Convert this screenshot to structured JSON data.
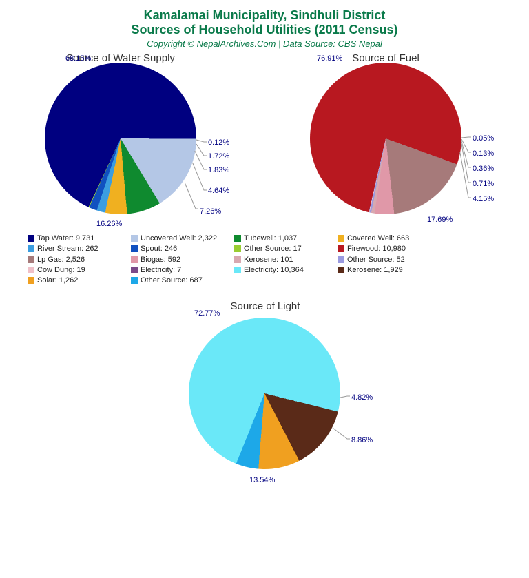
{
  "title_line1": "Kamalamai Municipality, Sindhuli District",
  "title_line2": "Sources of Household Utilities (2011 Census)",
  "subtitle": "Copyright © NepalArchives.Com | Data Source: CBS Nepal",
  "title_color": "#0a7a4a",
  "label_color": "#000080",
  "background_color": "#ffffff",
  "charts": {
    "water": {
      "title": "Source of Water Supply",
      "slices": [
        {
          "label": "Tap Water",
          "value": 9731,
          "pct": 68.15,
          "color": "#000080"
        },
        {
          "label": "Uncovered Well",
          "value": 2322,
          "pct": 16.26,
          "color": "#b4c7e6"
        },
        {
          "label": "Tubewell",
          "value": 1037,
          "pct": 7.26,
          "color": "#0f8a2f"
        },
        {
          "label": "Covered Well",
          "value": 663,
          "pct": 4.64,
          "color": "#f0b020"
        },
        {
          "label": "River Stream",
          "value": 262,
          "pct": 1.83,
          "color": "#3b9de0"
        },
        {
          "label": "Spout",
          "value": 246,
          "pct": 1.72,
          "color": "#1050c0"
        },
        {
          "label": "Other Source",
          "value": 17,
          "pct": 0.12,
          "color": "#9acd32"
        }
      ]
    },
    "fuel": {
      "title": "Source of Fuel",
      "slices": [
        {
          "label": "Firewood",
          "value": 10980,
          "pct": 76.91,
          "color": "#b81820"
        },
        {
          "label": "Lp Gas",
          "value": 2526,
          "pct": 17.69,
          "color": "#a67a7a"
        },
        {
          "label": "Biogas",
          "value": 592,
          "pct": 4.15,
          "color": "#e098a8"
        },
        {
          "label": "Kerosene",
          "value": 101,
          "pct": 0.71,
          "color": "#d8a8b0"
        },
        {
          "label": "Other Source",
          "value": 52,
          "pct": 0.36,
          "color": "#9a9ae0"
        },
        {
          "label": "Cow Dung",
          "value": 19,
          "pct": 0.13,
          "color": "#f0c0c8"
        },
        {
          "label": "Electricity",
          "value": 7,
          "pct": 0.05,
          "color": "#7a4a8a"
        }
      ]
    },
    "light": {
      "title": "Source of Light",
      "slices": [
        {
          "label": "Electricity",
          "value": 10364,
          "pct": 72.77,
          "color": "#6ae8f8"
        },
        {
          "label": "Kerosene",
          "value": 1929,
          "pct": 13.54,
          "color": "#5a2a18"
        },
        {
          "label": "Solar",
          "value": 1262,
          "pct": 8.86,
          "color": "#f0a020"
        },
        {
          "label": "Other Source",
          "value": 687,
          "pct": 4.82,
          "color": "#1da8e8"
        }
      ]
    }
  },
  "legend": [
    [
      {
        "color": "#000080",
        "text": "Tap Water: 9,731"
      },
      {
        "color": "#b4c7e6",
        "text": "Uncovered Well: 2,322"
      },
      {
        "color": "#0f8a2f",
        "text": "Tubewell: 1,037"
      },
      {
        "color": "#f0b020",
        "text": "Covered Well: 663"
      }
    ],
    [
      {
        "color": "#3b9de0",
        "text": "River Stream: 262"
      },
      {
        "color": "#1050c0",
        "text": "Spout: 246"
      },
      {
        "color": "#9acd32",
        "text": "Other Source: 17"
      },
      {
        "color": "#b81820",
        "text": "Firewood: 10,980"
      }
    ],
    [
      {
        "color": "#a67a7a",
        "text": "Lp Gas: 2,526"
      },
      {
        "color": "#e098a8",
        "text": "Biogas: 592"
      },
      {
        "color": "#d8a8b0",
        "text": "Kerosene: 101"
      },
      {
        "color": "#9a9ae0",
        "text": "Other Source: 52"
      }
    ],
    [
      {
        "color": "#f0c0c8",
        "text": "Cow Dung: 19"
      },
      {
        "color": "#7a4a8a",
        "text": "Electricity: 7"
      },
      {
        "color": "#6ae8f8",
        "text": "Electricity: 10,364"
      },
      {
        "color": "#5a2a18",
        "text": "Kerosene: 1,929"
      }
    ],
    [
      {
        "color": "#f0a020",
        "text": "Solar: 1,262"
      },
      {
        "color": "#1da8e8",
        "text": "Other Source: 687"
      }
    ]
  ],
  "legend_col_widths": [
    150,
    150,
    150,
    150
  ]
}
